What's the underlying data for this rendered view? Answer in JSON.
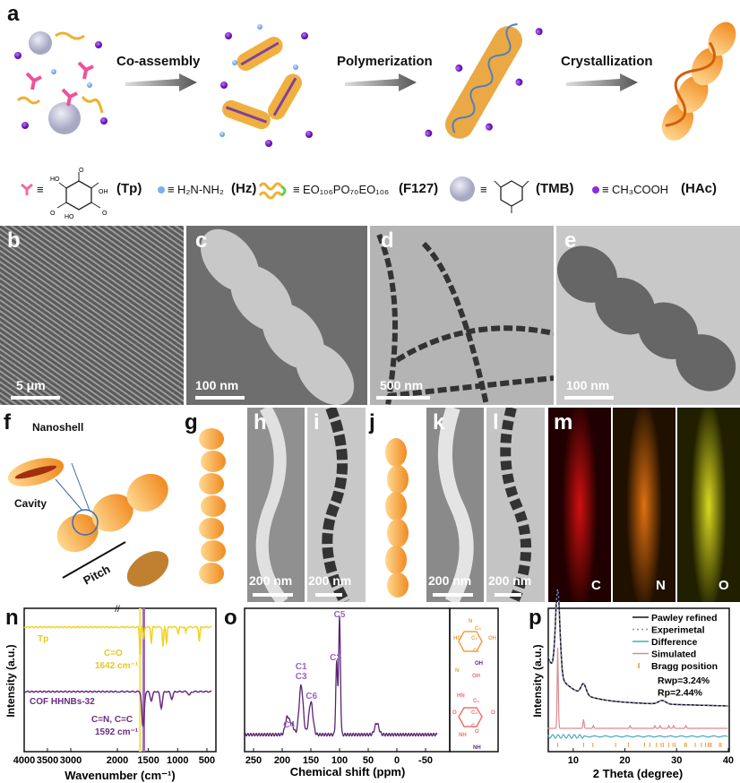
{
  "panels": {
    "a": "a",
    "b": "b",
    "c": "c",
    "d": "d",
    "e": "e",
    "f": "f",
    "g": "g",
    "h": "h",
    "i": "i",
    "j": "j",
    "k": "k",
    "l": "l",
    "m": "m",
    "n": "n",
    "o": "o",
    "p": "p"
  },
  "scheme": {
    "steps": [
      "Co-assembly",
      "Polymerization",
      "Crystallization"
    ]
  },
  "legend": {
    "tp": {
      "eq": "≡",
      "abbr": "(Tp)",
      "atoms": [
        "HO",
        "OH",
        "HO",
        "O",
        "O",
        "O"
      ]
    },
    "hz": {
      "eq": "≡",
      "formula": "H₂N-NH₂",
      "abbr": "(Hz)"
    },
    "f127": {
      "eq": "≡",
      "formula": "EO₁₀₆PO₇₀EO₁₀₆",
      "abbr": "(F127)"
    },
    "tmb": {
      "eq": "≡",
      "abbr": "(TMB)"
    },
    "hac": {
      "eq": "≡",
      "formula": "CH₃COOH",
      "abbr": "(HAc)"
    }
  },
  "micrographs": {
    "b": {
      "scale": "5 μm"
    },
    "c": {
      "scale": "100 nm"
    },
    "d": {
      "scale": "500 nm"
    },
    "e": {
      "scale": "100 nm"
    },
    "h": {
      "scale": "200 nm"
    },
    "i": {
      "scale": "200 nm"
    },
    "k": {
      "scale": "200 nm"
    },
    "l": {
      "scale": "200 nm"
    }
  },
  "model": {
    "nanoshell": "Nanoshell",
    "cavity": "Cavity",
    "pitch": "Pitch"
  },
  "mapping": {
    "elements": [
      "C",
      "N",
      "O"
    ],
    "colors": [
      "#e01010",
      "#f07a10",
      "#d8d820"
    ]
  },
  "colors": {
    "tp": "#f2d21a",
    "cof": "#6a2c82",
    "nmr": "#5a2470",
    "pawley": "#111111",
    "experimental": "#8a88c8",
    "difference": "#4aa8b8",
    "simulated": "#d98a90",
    "bragg": "#e89a3a",
    "struct_top": "#f0a040",
    "struct_bottom": "#f07070"
  },
  "chart_data": [
    {
      "type": "line",
      "panel": "n",
      "xlabel": "Wavenumber (cm⁻¹)",
      "ylabel": "Intensity (a.u.)",
      "xlim": [
        4000,
        400
      ],
      "x_break": 2000,
      "xticks": [
        4000,
        3500,
        3000,
        2000,
        1500,
        1000,
        500
      ],
      "series": [
        {
          "name": "Tp",
          "peaks_cm-1": [
            1642,
            1580,
            1450,
            1250,
            1190,
            990,
            860,
            630
          ]
        },
        {
          "name": "COF HHNBs-32",
          "peaks_cm-1": [
            1592,
            1450,
            1280,
            1100,
            800
          ]
        }
      ],
      "annotations": [
        {
          "text": "C=O",
          "sub": "1642 cm⁻¹",
          "x": 1642
        },
        {
          "text": "C=N, C=C",
          "sub": "1592 cm⁻¹",
          "x": 1592
        }
      ]
    },
    {
      "type": "line",
      "panel": "o",
      "xlabel": "Chemical shift (ppm)",
      "xlim": [
        265,
        -70
      ],
      "xticks": [
        250,
        200,
        150,
        100,
        50,
        0,
        -50
      ],
      "peaks": [
        {
          "label": "C5",
          "x": 100,
          "height": 1.0
        },
        {
          "label": "C2",
          "x": 105,
          "height": 0.62
        },
        {
          "label": "C1\nC3",
          "x": 167,
          "height": 0.42
        },
        {
          "label": "C6",
          "x": 150,
          "height": 0.28
        },
        {
          "label": "C4",
          "x": 183,
          "height": 0.08
        },
        {
          "x": 191,
          "height": 0.15
        },
        {
          "x": 35,
          "height": 0.1
        }
      ],
      "peak_labels": [
        "C5",
        "C2",
        "C1",
        "C3",
        "C6",
        "C4"
      ],
      "structure_labels": [
        "N",
        "C₅",
        "HO",
        "OH",
        "C₂",
        "C₁",
        "N",
        "OH",
        "OH",
        "HN",
        "C₆",
        "O",
        "C₃",
        "O",
        "C₄",
        "NH",
        "O",
        "NH"
      ]
    },
    {
      "type": "line",
      "panel": "p",
      "xlabel": "2 Theta (degree)",
      "ylabel": "Intensity (a.u.)",
      "xlim": [
        5,
        40
      ],
      "xticks": [
        10,
        20,
        30,
        40
      ],
      "legend": [
        "Pawley refined",
        "Experimetal",
        "Difference",
        "Simulated",
        "Bragg position"
      ],
      "legend_position": "top-right",
      "annotations": [
        "Rwp=3.24%",
        "Rp=2.44%"
      ],
      "peaks_2theta": [
        7.0,
        12.0,
        13.9,
        21.0,
        25.8,
        26.8,
        28.5,
        29.4,
        31.8
      ],
      "bragg_positions": [
        7.0,
        12.0,
        13.8,
        18.2,
        20.7,
        23.8,
        24.8,
        26.1,
        27.0,
        27.4,
        28.5,
        29.3,
        29.7,
        31.6,
        31.9,
        33.6,
        34.8,
        35.6,
        36.1,
        36.4,
        36.7,
        38.3,
        38.6
      ]
    }
  ]
}
